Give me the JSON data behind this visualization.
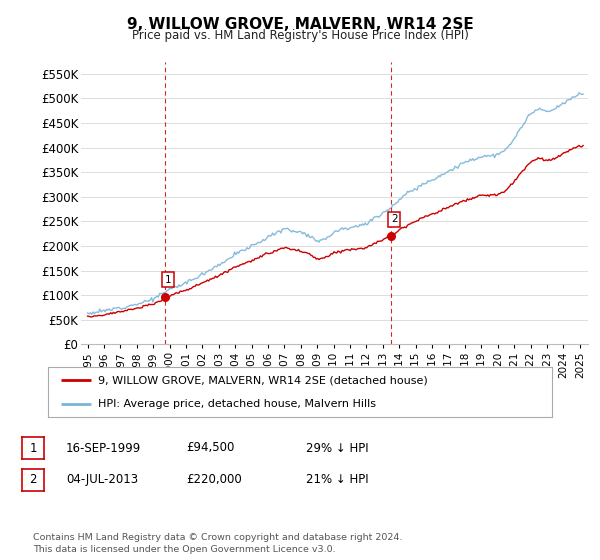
{
  "title": "9, WILLOW GROVE, MALVERN, WR14 2SE",
  "subtitle": "Price paid vs. HM Land Registry's House Price Index (HPI)",
  "ylim": [
    0,
    575000
  ],
  "yticks": [
    0,
    50000,
    100000,
    150000,
    200000,
    250000,
    300000,
    350000,
    400000,
    450000,
    500000,
    550000
  ],
  "ytick_labels": [
    "£0",
    "£50K",
    "£100K",
    "£150K",
    "£200K",
    "£250K",
    "£300K",
    "£350K",
    "£400K",
    "£450K",
    "£500K",
    "£550K"
  ],
  "hpi_color": "#7ab4d8",
  "sale_color": "#cc0000",
  "vline_color": "#cc0000",
  "background_color": "#ffffff",
  "grid_color": "#dddddd",
  "legend_label_sale": "9, WILLOW GROVE, MALVERN, WR14 2SE (detached house)",
  "legend_label_hpi": "HPI: Average price, detached house, Malvern Hills",
  "sale1_date": "16-SEP-1999",
  "sale1_price": 94500,
  "sale1_note": "29% ↓ HPI",
  "sale2_date": "04-JUL-2013",
  "sale2_price": 220000,
  "sale2_note": "21% ↓ HPI",
  "footer": "Contains HM Land Registry data © Crown copyright and database right 2024.\nThis data is licensed under the Open Government Licence v3.0.",
  "sale1_year": 1999.71,
  "sale2_year": 2013.5,
  "hpi_anchors_x": [
    1995.0,
    1996.0,
    1997.0,
    1998.0,
    1999.0,
    2000.0,
    2001.0,
    2002.0,
    2003.0,
    2004.0,
    2005.0,
    2006.0,
    2007.0,
    2008.0,
    2008.5,
    2009.0,
    2009.5,
    2010.0,
    2010.5,
    2011.0,
    2011.5,
    2012.0,
    2013.0,
    2013.5,
    2014.0,
    2015.0,
    2016.0,
    2017.0,
    2018.0,
    2019.0,
    2020.0,
    2020.5,
    2021.0,
    2021.5,
    2022.0,
    2022.5,
    2023.0,
    2023.5,
    2024.0,
    2024.5,
    2025.0
  ],
  "hpi_anchors_y": [
    63000,
    68000,
    75000,
    82000,
    92000,
    112000,
    125000,
    143000,
    162000,
    183000,
    200000,
    218000,
    235000,
    228000,
    222000,
    210000,
    215000,
    228000,
    235000,
    238000,
    242000,
    245000,
    268000,
    278000,
    295000,
    318000,
    335000,
    352000,
    370000,
    382000,
    385000,
    395000,
    418000,
    445000,
    468000,
    480000,
    472000,
    478000,
    490000,
    500000,
    510000
  ],
  "sale_ratio_before": 0.71,
  "sale_ratio_after": 0.79
}
